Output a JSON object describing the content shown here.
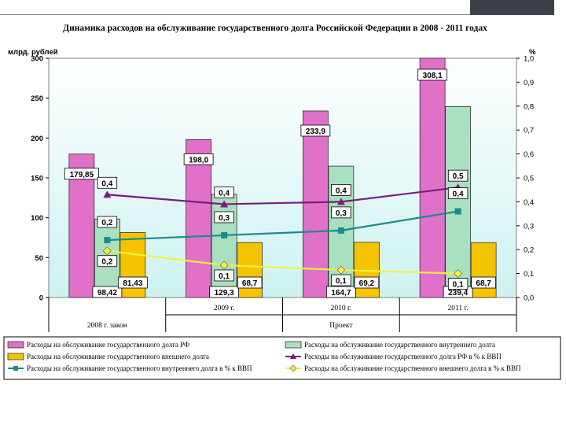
{
  "slide": {
    "title": "Динамика расходов на обслуживание государственного долга Российской Федерации в 2008 - 2011 годах"
  },
  "colors": {
    "plot_bg": "#ccf2f0",
    "total_bar": "#e070c8",
    "internal_bar": "#a8e0c0",
    "external_bar": "#f5c400",
    "total_pct_line": "#7a1c7c",
    "internal_pct_line": "#1a8a8a",
    "external_pct_line": "#f2f040"
  },
  "chart_data": {
    "type": "bar",
    "title": "Динамика расходов на обслуживание государственного долга Российской Федерации в 2008 - 2011 годах",
    "ylabel": "млрд. рублей",
    "y2label": "%",
    "ylim": [
      0,
      300
    ],
    "y2lim": [
      0,
      1.0
    ],
    "yticks": [
      "0",
      "50",
      "100",
      "150",
      "200",
      "250",
      "300"
    ],
    "y2ticks": [
      "0,0",
      "0,1",
      "0,2",
      "0,3",
      "0,4",
      "0,5",
      "0,6",
      "0,7",
      "0,8",
      "0,9",
      "1,0"
    ],
    "categories": [
      "",
      "2009 г.",
      "2010 г.",
      "2011 г."
    ],
    "groups": [
      "2008 г. закон",
      "Проект"
    ],
    "series": [
      {
        "name": "Расходы на обслуживание государственного долга РФ",
        "kind": "bar",
        "values": [
          179.85,
          198.0,
          233.9,
          308.1
        ],
        "labels": [
          "179,85",
          "198,0",
          "233,9",
          "308,1"
        ]
      },
      {
        "name": "Расходы на обслуживание государственного внутреннего долга",
        "kind": "bar",
        "values": [
          98.42,
          129.3,
          164.7,
          239.4
        ],
        "labels": [
          "98,42",
          "129,3",
          "164,7",
          "239,4"
        ]
      },
      {
        "name": "Расходы на обслуживание государственного внешнего долга",
        "kind": "bar",
        "values": [
          81.43,
          68.7,
          69.2,
          68.7
        ],
        "labels": [
          "81,43",
          "68,7",
          "69,2",
          "68,7"
        ]
      },
      {
        "name": "Расходы на обслуживание государственного долга РФ в % к ВВП",
        "kind": "line",
        "values": [
          0.43,
          0.39,
          0.4,
          0.46
        ],
        "labels": [
          "0,4",
          "0,4",
          "0,4",
          "0,5"
        ]
      },
      {
        "name": "Расходы на обслуживание государственного внутреннего долга  в % к ВВП",
        "kind": "line",
        "values": [
          0.24,
          0.26,
          0.28,
          0.36
        ],
        "labels": [
          "0,2",
          "0,3",
          "0,3",
          "0,4"
        ]
      },
      {
        "name": "Расходы на обслуживание государственного внешнего долга  в % к ВВП",
        "kind": "line",
        "values": [
          0.195,
          0.135,
          0.115,
          0.1
        ],
        "labels": [
          "0,2",
          "0,1",
          "0,1",
          "0,1"
        ]
      }
    ]
  }
}
